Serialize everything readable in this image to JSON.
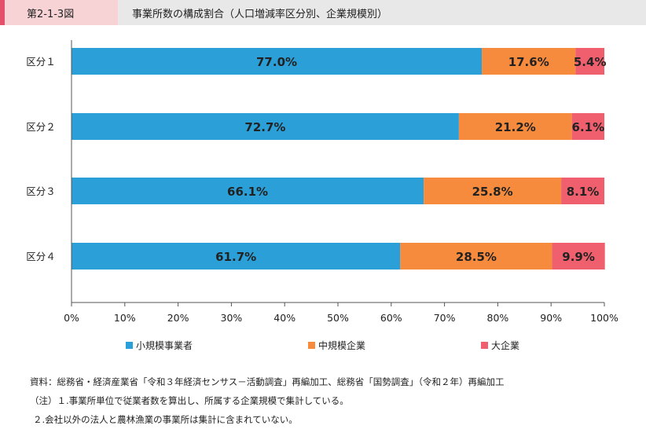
{
  "header": {
    "figure_no": "第2-1-3図",
    "title": "事業所数の構成割合（人口増減率区分別、企業規模別）"
  },
  "colors": {
    "small": "#2b9fd8",
    "medium": "#f68a3d",
    "large": "#ef5f6d",
    "header_bg": "#e8e8e8",
    "badge_bg": "#f7d3d6",
    "badge_accent": "#e4506a"
  },
  "chart_data": {
    "type": "bar",
    "orientation": "horizontal",
    "stacked": true,
    "categories": [
      "区分１",
      "区分２",
      "区分３",
      "区分４"
    ],
    "series": [
      {
        "name": "小規模事業者",
        "values": [
          77.0,
          72.7,
          66.1,
          61.7
        ],
        "labels": [
          "77.0%",
          "72.7%",
          "66.1%",
          "61.7%"
        ]
      },
      {
        "name": "中規模企業",
        "values": [
          17.6,
          21.2,
          25.8,
          28.5
        ],
        "labels": [
          "17.6%",
          "21.2%",
          "25.8%",
          "28.5%"
        ]
      },
      {
        "name": "大企業",
        "values": [
          5.4,
          6.1,
          8.1,
          9.9
        ],
        "labels": [
          "5.4%",
          "6.1%",
          "8.1%",
          "9.9%"
        ]
      }
    ],
    "xlim": [
      0,
      100
    ],
    "xticks": [
      "0%",
      "10%",
      "20%",
      "30%",
      "40%",
      "50%",
      "60%",
      "70%",
      "80%",
      "90%",
      "100%"
    ],
    "legend_position": "bottom",
    "grid": false
  },
  "notes": {
    "source": "資料：総務省・経済産業省「令和３年経済センサス－活動調査」再編加工、総務省「国勢調査」（令和２年）再編加工",
    "note1": "（注）１.事業所単位で従業者数を算出し、所属する企業規模で集計している。",
    "note2": "２.会社以外の法人と農林漁業の事業所は集計に含まれていない。"
  }
}
